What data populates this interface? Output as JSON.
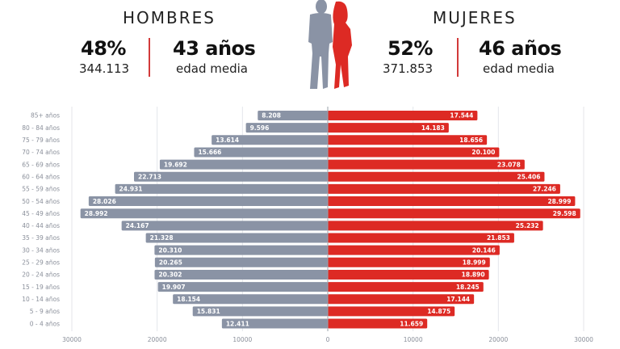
{
  "header": {
    "men": {
      "title": "HOMBRES",
      "percent": "48%",
      "count": "344.113",
      "age": "43 años",
      "age_label": "edad media"
    },
    "women": {
      "title": "MUJERES",
      "percent": "52%",
      "count": "371.853",
      "age": "46 años",
      "age_label": "edad media"
    },
    "illustration_icon": "couple-silhouette-icon"
  },
  "colors": {
    "men": "#8a93a5",
    "women": "#dd2a24",
    "separator": "#d23a3a",
    "grid": "#e4e6ea",
    "zero_line": "#9aa0aa"
  },
  "chart_data": {
    "type": "bar",
    "orientation": "horizontal",
    "subtype": "population-pyramid",
    "categories": [
      "85+ años",
      "80 - 84 años",
      "75 - 79 años",
      "70 - 74 años",
      "65 - 69 años",
      "60 - 64 años",
      "55 - 59 años",
      "50 - 54 años",
      "45 - 49 años",
      "40 - 44 años",
      "35 - 39 años",
      "30 - 34 años",
      "25 - 29 años",
      "20 - 24 años",
      "15 - 19 años",
      "10 - 14 años",
      "5 - 9 años",
      "0 - 4 años"
    ],
    "series": [
      {
        "name": "Hombres",
        "side": "left",
        "values": [
          8208,
          9596,
          13614,
          15666,
          19692,
          22713,
          24931,
          28026,
          28992,
          24167,
          21328,
          20310,
          20265,
          20302,
          19907,
          18154,
          15831,
          12411
        ],
        "labels": [
          "8.208",
          "9.596",
          "13.614",
          "15.666",
          "19.692",
          "22.713",
          "24.931",
          "28.026",
          "28.992",
          "24.167",
          "21.328",
          "20.310",
          "20.265",
          "20.302",
          "19.907",
          "18.154",
          "15.831",
          "12.411"
        ]
      },
      {
        "name": "Mujeres",
        "side": "right",
        "values": [
          17544,
          14183,
          18656,
          20100,
          23078,
          25406,
          27246,
          28999,
          29598,
          25232,
          21853,
          20146,
          18999,
          18890,
          18245,
          17144,
          14875,
          11659
        ],
        "labels": [
          "17.544",
          "14.183",
          "18.656",
          "20.100",
          "23.078",
          "25.406",
          "27.246",
          "28.999",
          "29.598",
          "25.232",
          "21.853",
          "20.146",
          "18.999",
          "18.890",
          "18.245",
          "17.144",
          "14.875",
          "11.659"
        ]
      }
    ],
    "x_ticks_left": [
      "30000",
      "20000",
      "10000"
    ],
    "x_ticks_right": [
      "0",
      "10000",
      "20000",
      "30000"
    ],
    "tick_values_left": [
      30000,
      20000,
      10000
    ],
    "tick_values_right": [
      0,
      10000,
      20000,
      30000
    ],
    "xlim": [
      -30000,
      30000
    ],
    "grid": true,
    "title": "",
    "xlabel": "",
    "ylabel": ""
  }
}
